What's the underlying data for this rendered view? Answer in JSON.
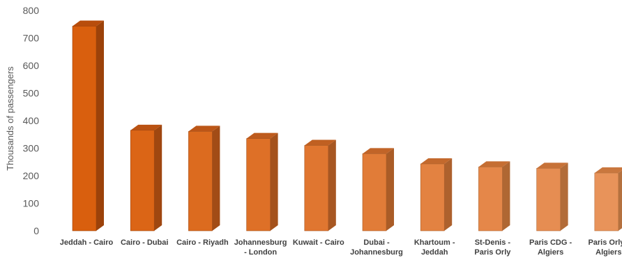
{
  "chart_data": {
    "type": "bar",
    "title": "",
    "xlabel": "",
    "ylabel": "Thousands of passengers",
    "ylim": [
      0,
      800
    ],
    "y_ticks": [
      0,
      100,
      200,
      300,
      400,
      500,
      600,
      700,
      800
    ],
    "grid": false,
    "style": "3d-column",
    "categories": [
      [
        "Jeddah - Cairo"
      ],
      [
        "Cairo - Dubai"
      ],
      [
        "Cairo - Riyadh"
      ],
      [
        "Johannesburg",
        "- London"
      ],
      [
        "Kuwait - Cairo"
      ],
      [
        "Dubai -",
        "Johannesburg"
      ],
      [
        "Khartoum -",
        "Jeddah"
      ],
      [
        "St-Denis -",
        "Paris Orly"
      ],
      [
        "Paris CDG -",
        "Algiers"
      ],
      [
        "Paris Orly -",
        "Algiers"
      ]
    ],
    "values": [
      743,
      365,
      361,
      335,
      310,
      280,
      243,
      232,
      227,
      210
    ],
    "colors": {
      "front_start": "#d95f0e",
      "front_end": "#e8935a",
      "side_start": "#9c420a",
      "side_end": "#b5713f",
      "top_start": "#b84d0c",
      "top_end": "#c9773e"
    }
  }
}
